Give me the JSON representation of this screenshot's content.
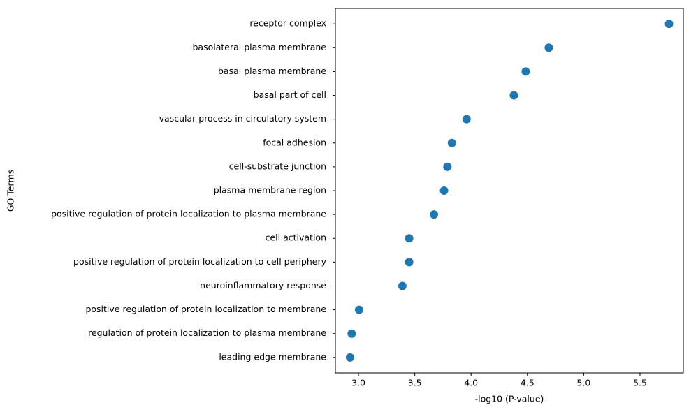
{
  "chart_data": {
    "type": "dot",
    "x_label": "-log10 (P-value)",
    "y_label": "GO Terms",
    "categories": [
      "receptor complex",
      "basolateral plasma membrane",
      "basal plasma membrane",
      "basal part of cell",
      "vascular process in circulatory system",
      "focal adhesion",
      "cell-substrate junction",
      "plasma membrane region",
      "positive regulation of protein localization to plasma membrane",
      "cell activation",
      "positive regulation of protein localization to cell periphery",
      "neuroinflammatory response",
      "positive regulation of protein localization to membrane",
      "regulation of protein localization to plasma membrane",
      "leading edge membrane"
    ],
    "values": [
      5.758,
      4.69,
      4.485,
      4.38,
      3.96,
      3.83,
      3.79,
      3.76,
      3.67,
      3.45,
      3.45,
      3.39,
      3.005,
      2.94,
      2.925
    ],
    "color": "#1f77b4",
    "xlim": [
      2.795,
      5.885
    ],
    "xticks": [
      {
        "value": 3,
        "label": "3.0"
      },
      3.5,
      {
        "value": 4,
        "label": "4.0"
      },
      4.5,
      {
        "value": 5,
        "label": "5.0"
      },
      5.5
    ],
    "grid": false
  }
}
